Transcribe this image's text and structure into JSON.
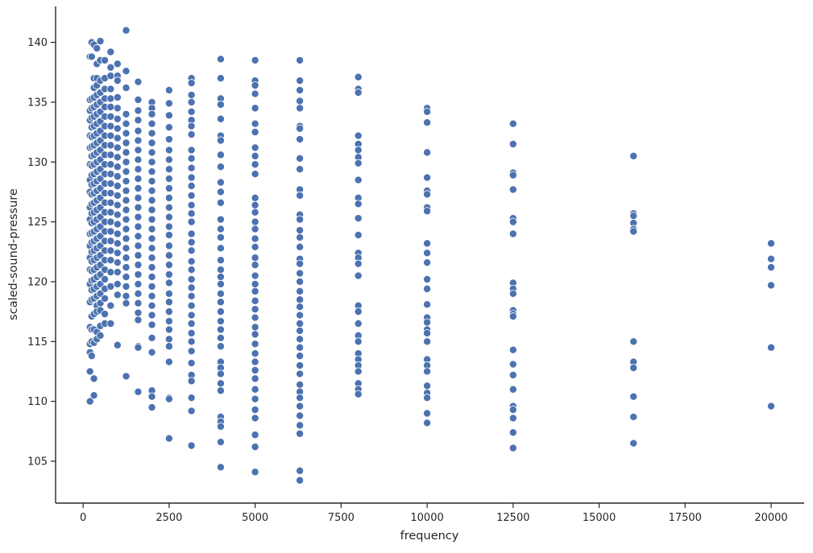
{
  "chart_data": {
    "type": "scatter",
    "title": "",
    "xlabel": "frequency",
    "ylabel": "scaled-sound-pressure",
    "xlim": [
      -800,
      20960
    ],
    "ylim": [
      101.5,
      143
    ],
    "xticks": [
      0,
      2500,
      5000,
      7500,
      10000,
      12500,
      15000,
      17500,
      20000
    ],
    "yticks": [
      105,
      110,
      115,
      120,
      125,
      130,
      135,
      140
    ],
    "grid": false,
    "legend": "none",
    "point_color": "#4c72b0",
    "series": [
      {
        "x": 200,
        "y": [
          138.8,
          135.2,
          134.3,
          133.5,
          132.2,
          131.2,
          129.8,
          128.5,
          127.5,
          126.2,
          125.2,
          124,
          123,
          122,
          121,
          119.8,
          118.3,
          116.2,
          114.8,
          114.1,
          112.5,
          110
        ]
      },
      {
        "x": 250,
        "y": [
          140,
          138.8,
          135.3,
          134.5,
          133.7,
          132.9,
          132.1,
          131.3,
          130.5,
          129.7,
          128.9,
          128.1,
          127.3,
          126.5,
          125.7,
          124.9,
          124.1,
          123.3,
          122.5,
          121.7,
          120.9,
          120.1,
          119.3,
          118.5,
          117.1,
          116,
          115,
          113.8
        ]
      },
      {
        "x": 315,
        "y": [
          139.8,
          137,
          136.2,
          135.4,
          134.6,
          133.8,
          133,
          132.2,
          131.4,
          130.6,
          129.8,
          129,
          128.2,
          127.4,
          126.6,
          125.8,
          125,
          124.2,
          123.4,
          122.6,
          121.8,
          121,
          120.2,
          119.4,
          118.6,
          117.3,
          116,
          114.9,
          111.9,
          110.5
        ]
      },
      {
        "x": 400,
        "y": [
          139.5,
          138.2,
          137,
          136.4,
          135.6,
          134.8,
          134,
          133.2,
          132.4,
          131.6,
          130.8,
          130,
          129.2,
          128.4,
          127.6,
          126.8,
          126,
          125.2,
          124.4,
          123.6,
          122.8,
          122,
          121.2,
          120.4,
          119.6,
          118.8,
          118,
          117.5,
          115.8,
          115.2
        ]
      },
      {
        "x": 500,
        "y": [
          140.1,
          138.5,
          136.8,
          135.8,
          135,
          134.2,
          133.4,
          132.6,
          131.8,
          131,
          130.2,
          129.4,
          128.6,
          127.8,
          127,
          126.2,
          125.4,
          124.6,
          123.8,
          123,
          122.2,
          121.4,
          120.6,
          119.8,
          119,
          118.2,
          117.6,
          116.3,
          115.5
        ]
      },
      {
        "x": 630,
        "y": [
          138.5,
          137,
          136.1,
          135.3,
          134.6,
          133.8,
          133,
          132.2,
          131.4,
          130.6,
          129.8,
          129,
          128.2,
          127.4,
          126.6,
          125.8,
          125,
          124.2,
          123.4,
          122.6,
          121.8,
          121,
          120.2,
          119.4,
          118.6,
          117.3,
          116.5
        ]
      },
      {
        "x": 800,
        "y": [
          139.2,
          137.9,
          137.2,
          136.1,
          135.3,
          134.6,
          133.8,
          133,
          132.2,
          131.4,
          130.6,
          129.8,
          129,
          128.2,
          127.4,
          126.6,
          125.8,
          125,
          124.2,
          123.4,
          122.6,
          121.8,
          120.8,
          119.6,
          118,
          116.5
        ]
      },
      {
        "x": 1000,
        "y": [
          138.2,
          137.2,
          136.8,
          135.4,
          134.5,
          133.6,
          132.8,
          132,
          131.2,
          130.4,
          129.6,
          128.8,
          128,
          127.2,
          126.4,
          125.6,
          124.8,
          124,
          123.2,
          122.4,
          121.6,
          120.8,
          119.8,
          118.9,
          114.7
        ]
      },
      {
        "x": 1250,
        "y": [
          141,
          137.6,
          136.2,
          134,
          133.2,
          132.4,
          131.6,
          130.8,
          130,
          129.2,
          128.4,
          127.6,
          126.8,
          126,
          125.2,
          124.4,
          123.6,
          122.8,
          122,
          121.2,
          120.4,
          119.6,
          118.8,
          118.2,
          112.1
        ]
      },
      {
        "x": 1600,
        "y": [
          136.7,
          135.2,
          134.3,
          133.5,
          132.6,
          131.8,
          131,
          130.2,
          129.4,
          128.6,
          127.8,
          127,
          126.2,
          125.4,
          124.6,
          123.8,
          123,
          122.2,
          121.4,
          120.6,
          119.8,
          119,
          118.2,
          117.4,
          116.8,
          114.6,
          114.5,
          110.8
        ]
      },
      {
        "x": 2000,
        "y": [
          135,
          134.5,
          134,
          133.2,
          132.4,
          131.6,
          130.8,
          130,
          129.2,
          128.4,
          127.6,
          126.8,
          126,
          125.2,
          124.4,
          123.6,
          122.8,
          122,
          121.2,
          120.4,
          119.6,
          118.8,
          118,
          117.2,
          116.4,
          115.3,
          114.1,
          110.9,
          110.4,
          109.5
        ]
      },
      {
        "x": 2500,
        "y": [
          136,
          134.9,
          133.9,
          132.9,
          131.9,
          131,
          130.2,
          129.4,
          128.6,
          127.8,
          127,
          126.2,
          125.4,
          124.6,
          123.9,
          123,
          122.2,
          121.4,
          120.6,
          119.9,
          119,
          118.3,
          117.5,
          116.7,
          116,
          115.2,
          114.6,
          113.3,
          110.3,
          110.2,
          106.9
        ]
      },
      {
        "x": 3150,
        "y": [
          137,
          136.6,
          135.6,
          135,
          134.2,
          133.5,
          133,
          132.3,
          131,
          130.3,
          129.5,
          128.7,
          128,
          127.2,
          126.4,
          125.7,
          125,
          124,
          123.3,
          122.6,
          121.7,
          121,
          120.2,
          119.5,
          118.8,
          118,
          117.2,
          116.5,
          115.7,
          115,
          114.2,
          113.2,
          112.2,
          111.7,
          110.3,
          109.2,
          106.3
        ]
      },
      {
        "x": 4000,
        "y": [
          138.6,
          137,
          135.3,
          134.8,
          133.6,
          132.2,
          131.8,
          130.6,
          129.6,
          128.3,
          127.5,
          126.6,
          125.2,
          124.4,
          123.7,
          122.8,
          121.8,
          121,
          120.4,
          119.8,
          119,
          118.3,
          117.5,
          116.7,
          116,
          115.3,
          114.6,
          113.3,
          112.8,
          112.3,
          111.5,
          110.9,
          108.7,
          108.3,
          107.9,
          106.6,
          104.5
        ]
      },
      {
        "x": 5000,
        "y": [
          138.5,
          136.8,
          136.4,
          135.7,
          134.5,
          133.2,
          132.5,
          131.2,
          130.5,
          129.8,
          129,
          127,
          126.4,
          125.8,
          125,
          124.4,
          123.6,
          122.9,
          122,
          121.4,
          120.5,
          119.8,
          119.2,
          118.4,
          117.7,
          117,
          116.2,
          115.6,
          114.8,
          114,
          113.3,
          112.6,
          111.9,
          111,
          110.2,
          109.3,
          108.6,
          107.2,
          106.2,
          104.1
        ]
      },
      {
        "x": 6300,
        "y": [
          138.5,
          136.8,
          136,
          135.1,
          134.5,
          133,
          132.8,
          131.9,
          130.3,
          129.4,
          127.7,
          127.2,
          125.6,
          125.2,
          124.3,
          123.7,
          122.9,
          121.9,
          121.5,
          120.7,
          120,
          119.2,
          118.5,
          117.9,
          117.2,
          116.5,
          115.9,
          115.2,
          114.5,
          113.8,
          113,
          112.3,
          111.4,
          110.8,
          110.3,
          109.6,
          108.8,
          108,
          107.3,
          104.2,
          103.4
        ]
      },
      {
        "x": 8000,
        "y": [
          137.1,
          136.1,
          135.8,
          132.2,
          131.5,
          131,
          130.4,
          129.9,
          128.5,
          127,
          126.5,
          125.3,
          123.9,
          122.4,
          122,
          121.5,
          120.5,
          118,
          117.5,
          116.5,
          115.5,
          115,
          114,
          113.5,
          113,
          112.5,
          111.5,
          111,
          110.6
        ]
      },
      {
        "x": 10000,
        "y": [
          134.5,
          134.2,
          133.3,
          130.8,
          128.7,
          127.6,
          127.3,
          126.2,
          125.9,
          123.2,
          122.4,
          121.6,
          120.2,
          119.4,
          118.1,
          117,
          116.6,
          116,
          115.7,
          115,
          113.5,
          113,
          112.5,
          111.3,
          110.7,
          110.3,
          109,
          108.2
        ]
      },
      {
        "x": 12500,
        "y": [
          133.2,
          131.5,
          129.1,
          128.9,
          127.7,
          125.3,
          125,
          124,
          119.9,
          119.4,
          119,
          117.6,
          117.3,
          117.1,
          114.3,
          113.1,
          112.2,
          111,
          109.6,
          109.3,
          108.6,
          107.4,
          106.1
        ]
      },
      {
        "x": 16000,
        "y": [
          130.5,
          125.7,
          125.5,
          124.9,
          124.4,
          124.2,
          115,
          113.3,
          112.8,
          110.4,
          108.7,
          106.5
        ]
      },
      {
        "x": 20000,
        "y": [
          123.2,
          121.9,
          121.2,
          119.7,
          114.5,
          109.6
        ]
      }
    ]
  }
}
